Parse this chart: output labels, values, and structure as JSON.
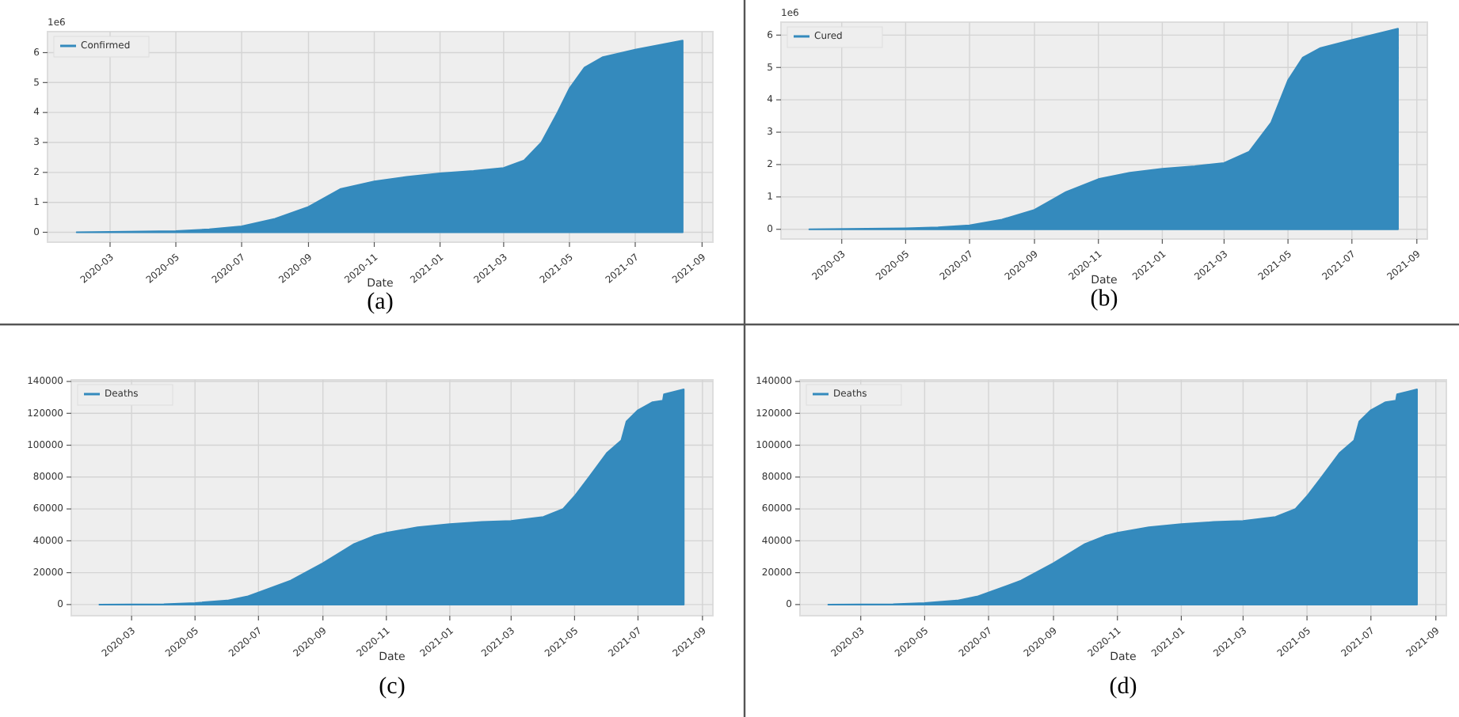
{
  "chart_data": [
    {
      "type": "area",
      "xlabel": "Date",
      "annotations": [
        "1e6",
        "(a)"
      ],
      "legend": "top left",
      "grid": true,
      "x": [
        "2020-01-30",
        "2020-05-01",
        "2020-06-01",
        "2020-07-01",
        "2020-08-01",
        "2020-09-01",
        "2020-10-01",
        "2020-11-01",
        "2020-12-01",
        "2021-01-01",
        "2021-02-01",
        "2021-03-01",
        "2021-03-20",
        "2021-04-05",
        "2021-04-20",
        "2021-05-01",
        "2021-05-15",
        "2021-06-01",
        "2021-07-01",
        "2021-08-14"
      ],
      "series": [
        {
          "name": "Confirmed",
          "color": "#348abd",
          "values": [
            0,
            0.04,
            0.1,
            0.2,
            0.45,
            0.85,
            1.45,
            1.7,
            1.85,
            1.97,
            2.05,
            2.15,
            2.4,
            3.0,
            4.0,
            4.8,
            5.5,
            5.85,
            6.1,
            6.4
          ]
        }
      ],
      "xlim": [
        "2020-01-03",
        "2021-09-11"
      ],
      "ylim": [
        -0.33,
        6.7
      ],
      "xticks": [
        {
          "value": "2020-03-01",
          "label": "2020-03"
        },
        {
          "value": "2020-05-01",
          "label": "2020-05"
        },
        {
          "value": "2020-07-01",
          "label": "2020-07"
        },
        {
          "value": "2020-09-01",
          "label": "2020-09"
        },
        {
          "value": "2020-11-01",
          "label": "2020-11"
        },
        {
          "value": "2021-01-01",
          "label": "2021-01"
        },
        {
          "value": "2021-03-01",
          "label": "2021-03"
        },
        {
          "value": "2021-05-01",
          "label": "2021-05"
        },
        {
          "value": "2021-07-01",
          "label": "2021-07"
        },
        {
          "value": "2021-09-01",
          "label": "2021-09"
        }
      ],
      "yticks": [
        0,
        1,
        2,
        3,
        4,
        5,
        6
      ]
    },
    {
      "type": "area",
      "xlabel": "Date",
      "annotations": [
        "1e6",
        "(b)"
      ],
      "legend": "top left",
      "grid": true,
      "x": [
        "2020-01-30",
        "2020-05-01",
        "2020-06-01",
        "2020-07-01",
        "2020-08-01",
        "2020-09-01",
        "2020-10-01",
        "2020-11-01",
        "2020-12-01",
        "2021-01-01",
        "2021-02-01",
        "2021-03-01",
        "2021-03-25",
        "2021-04-15",
        "2021-05-01",
        "2021-05-15",
        "2021-06-01",
        "2021-07-01",
        "2021-08-14"
      ],
      "series": [
        {
          "name": "Cured",
          "color": "#348abd",
          "values": [
            0,
            0.03,
            0.06,
            0.12,
            0.3,
            0.6,
            1.15,
            1.55,
            1.75,
            1.87,
            1.95,
            2.05,
            2.4,
            3.3,
            4.6,
            5.3,
            5.6,
            5.85,
            6.2
          ]
        }
      ],
      "xlim": [
        "2020-01-03",
        "2021-09-11"
      ],
      "ylim": [
        -0.3,
        6.4
      ],
      "xticks": [
        {
          "value": "2020-03-01",
          "label": "2020-03"
        },
        {
          "value": "2020-05-01",
          "label": "2020-05"
        },
        {
          "value": "2020-07-01",
          "label": "2020-07"
        },
        {
          "value": "2020-09-01",
          "label": "2020-09"
        },
        {
          "value": "2020-11-01",
          "label": "2020-11"
        },
        {
          "value": "2021-01-01",
          "label": "2021-01"
        },
        {
          "value": "2021-03-01",
          "label": "2021-03"
        },
        {
          "value": "2021-05-01",
          "label": "2021-05"
        },
        {
          "value": "2021-07-01",
          "label": "2021-07"
        },
        {
          "value": "2021-09-01",
          "label": "2021-09"
        }
      ],
      "yticks": [
        0,
        1,
        2,
        3,
        4,
        5,
        6
      ]
    },
    {
      "type": "area",
      "xlabel": "Date",
      "annotations": [
        "(c)"
      ],
      "legend": "top left",
      "grid": true,
      "x": [
        "2020-01-30",
        "2020-04-01",
        "2020-05-01",
        "2020-06-01",
        "2020-06-20",
        "2020-07-01",
        "2020-08-01",
        "2020-09-01",
        "2020-10-01",
        "2020-10-20",
        "2020-11-01",
        "2020-12-01",
        "2021-01-01",
        "2021-02-01",
        "2021-03-01",
        "2021-04-01",
        "2021-04-20",
        "2021-05-01",
        "2021-05-15",
        "2021-06-01",
        "2021-06-15",
        "2021-06-20",
        "2021-07-01",
        "2021-07-15",
        "2021-07-25",
        "2021-07-26",
        "2021-08-14"
      ],
      "series": [
        {
          "name": "Deaths",
          "color": "#348abd",
          "values": [
            0,
            200,
            1000,
            2500,
            5000,
            7500,
            15000,
            26000,
            38000,
            43000,
            45000,
            48500,
            50500,
            51800,
            52500,
            55000,
            60000,
            68000,
            80000,
            95000,
            103000,
            115000,
            122000,
            127000,
            128000,
            132000,
            135000
          ]
        }
      ],
      "xlim": [
        "2020-01-03",
        "2021-09-11"
      ],
      "ylim": [
        -7000,
        141000
      ],
      "xticks": [
        {
          "value": "2020-03-01",
          "label": "2020-03"
        },
        {
          "value": "2020-05-01",
          "label": "2020-05"
        },
        {
          "value": "2020-07-01",
          "label": "2020-07"
        },
        {
          "value": "2020-09-01",
          "label": "2020-09"
        },
        {
          "value": "2020-11-01",
          "label": "2020-11"
        },
        {
          "value": "2021-01-01",
          "label": "2021-01"
        },
        {
          "value": "2021-03-01",
          "label": "2021-03"
        },
        {
          "value": "2021-05-01",
          "label": "2021-05"
        },
        {
          "value": "2021-07-01",
          "label": "2021-07"
        },
        {
          "value": "2021-09-01",
          "label": "2021-09"
        }
      ],
      "yticks": [
        0,
        20000,
        40000,
        60000,
        80000,
        100000,
        120000,
        140000
      ]
    },
    {
      "type": "area",
      "xlabel": "Date",
      "annotations": [
        "(d)"
      ],
      "legend": "top left",
      "grid": true,
      "x": [
        "2020-01-30",
        "2020-04-01",
        "2020-05-01",
        "2020-06-01",
        "2020-06-20",
        "2020-07-01",
        "2020-08-01",
        "2020-09-01",
        "2020-10-01",
        "2020-10-20",
        "2020-11-01",
        "2020-12-01",
        "2021-01-01",
        "2021-02-01",
        "2021-03-01",
        "2021-04-01",
        "2021-04-20",
        "2021-05-01",
        "2021-05-15",
        "2021-06-01",
        "2021-06-15",
        "2021-06-20",
        "2021-07-01",
        "2021-07-15",
        "2021-07-25",
        "2021-07-26",
        "2021-08-14"
      ],
      "series": [
        {
          "name": "Deaths",
          "color": "#348abd",
          "values": [
            0,
            200,
            1000,
            2500,
            5000,
            7500,
            15000,
            26000,
            38000,
            43000,
            45000,
            48500,
            50500,
            51800,
            52500,
            55000,
            60000,
            68000,
            80000,
            95000,
            103000,
            115000,
            122000,
            127000,
            128000,
            132000,
            135000
          ]
        }
      ],
      "xlim": [
        "2020-01-03",
        "2021-09-11"
      ],
      "ylim": [
        -7000,
        141000
      ],
      "xticks": [
        {
          "value": "2020-03-01",
          "label": "2020-03"
        },
        {
          "value": "2020-05-01",
          "label": "2020-05"
        },
        {
          "value": "2020-07-01",
          "label": "2020-07"
        },
        {
          "value": "2020-09-01",
          "label": "2020-09"
        },
        {
          "value": "2020-11-01",
          "label": "2020-11"
        },
        {
          "value": "2021-01-01",
          "label": "2021-01"
        },
        {
          "value": "2021-03-01",
          "label": "2021-03"
        },
        {
          "value": "2021-05-01",
          "label": "2021-05"
        },
        {
          "value": "2021-07-01",
          "label": "2021-07"
        },
        {
          "value": "2021-09-01",
          "label": "2021-09"
        }
      ],
      "yticks": [
        0,
        20000,
        40000,
        60000,
        80000,
        100000,
        120000,
        140000
      ]
    }
  ]
}
